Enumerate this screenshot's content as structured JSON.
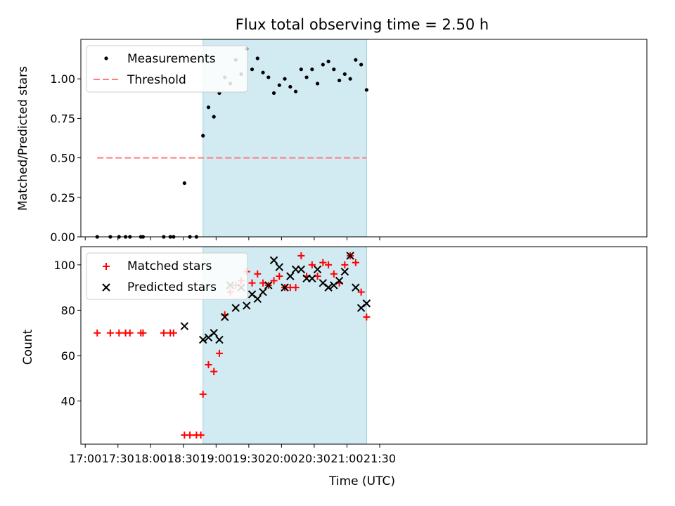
{
  "chart_data": [
    {
      "type": "scatter",
      "title": "Flux total observing time = 2.50 h",
      "xlabel": "",
      "ylabel": "Matched/Predicted stars",
      "xlim": [
        1016,
        1535
      ],
      "ylim": [
        0,
        1.25
      ],
      "yticks": [
        0,
        0.25,
        0.5,
        0.75,
        1.0
      ],
      "ytick_labels": [
        "0.00",
        "0.25",
        "0.50",
        "0.75",
        "1.00"
      ],
      "xticks": [
        1020,
        1050,
        1080,
        1110,
        1140,
        1170,
        1200,
        1230,
        1260,
        1290
      ],
      "shaded_region": [
        1128,
        1278
      ],
      "shade_color": "#add8e6",
      "legend": {
        "location": "upper-left",
        "measurements": "Measurements",
        "threshold": "Threshold"
      },
      "threshold": {
        "name": "Threshold",
        "value": 0.5,
        "x_range": [
          1031,
          1278
        ],
        "color": "#ff7f7f"
      },
      "series": [
        {
          "name": "Measurements",
          "color": "#000000",
          "x": [
            1031,
            1043,
            1051,
            1057,
            1061,
            1071,
            1073,
            1092,
            1098,
            1101,
            1122,
            1128,
            1133,
            1138,
            1143,
            1148,
            1153,
            1158,
            1163,
            1168,
            1173,
            1178,
            1183,
            1188,
            1193,
            1198,
            1203,
            1208,
            1213,
            1218,
            1223,
            1228,
            1233,
            1238,
            1243,
            1248,
            1253,
            1258,
            1263,
            1268,
            1273,
            1278
          ],
          "y": [
            0,
            0,
            0,
            0,
            0,
            0,
            0,
            0,
            0,
            0,
            0,
            0.64,
            0.82,
            0.76,
            0.91,
            1.01,
            0.97,
            1.12,
            1.03,
            1.19,
            1.06,
            1.13,
            1.04,
            1.01,
            0.91,
            0.96,
            1.0,
            0.95,
            0.92,
            1.06,
            1.01,
            1.06,
            0.97,
            1.09,
            1.11,
            1.06,
            0.99,
            1.03,
            1.0,
            1.12,
            1.09,
            0.93
          ],
          "extra_points": [
            {
              "x": 1111,
              "y": 0.34
            },
            {
              "x": 1116,
              "y": 0
            }
          ]
        }
      ]
    },
    {
      "type": "scatter",
      "title": "",
      "xlabel": "Time (UTC)",
      "ylabel": "Count",
      "xlim": [
        1016,
        1535
      ],
      "ylim": [
        21,
        108
      ],
      "yticks": [
        40,
        60,
        80,
        100
      ],
      "ytick_labels": [
        "40",
        "60",
        "80",
        "100"
      ],
      "xticks": [
        1020,
        1050,
        1080,
        1110,
        1140,
        1170,
        1200,
        1230,
        1260,
        1290
      ],
      "xtick_labels": [
        "17:00",
        "17:30",
        "18:00",
        "18:30",
        "19:00",
        "19:30",
        "20:00",
        "20:30",
        "21:00",
        "21:30"
      ],
      "shaded_region": [
        1128,
        1278
      ],
      "shade_color": "#add8e6",
      "legend": {
        "location": "upper-left",
        "matched": "Matched stars",
        "predicted": "Predicted stars"
      },
      "series": [
        {
          "name": "Matched stars",
          "marker": "plus",
          "color": "#ff0000",
          "x": [
            1031,
            1043,
            1051,
            1057,
            1061,
            1071,
            1073,
            1092,
            1098,
            1101,
            1111,
            1116,
            1122,
            1126,
            1128,
            1133,
            1138,
            1143,
            1148,
            1153,
            1158,
            1163,
            1168,
            1173,
            1178,
            1183,
            1188,
            1193,
            1198,
            1203,
            1208,
            1213,
            1218,
            1223,
            1228,
            1233,
            1238,
            1243,
            1248,
            1253,
            1258,
            1263,
            1268,
            1273,
            1278
          ],
          "y": [
            70,
            70,
            70,
            70,
            70,
            70,
            70,
            70,
            70,
            70,
            25,
            25,
            25,
            25,
            43,
            56,
            53,
            61,
            78,
            88,
            91,
            93,
            97,
            92,
            96,
            92,
            91,
            93,
            95,
            90,
            90,
            90,
            104,
            95,
            100,
            95,
            101,
            100,
            96,
            92,
            100,
            104,
            101,
            88,
            77
          ]
        },
        {
          "name": "Predicted stars",
          "marker": "x",
          "color": "#000000",
          "x": [
            1111,
            1128,
            1133,
            1138,
            1143,
            1148,
            1153,
            1158,
            1163,
            1168,
            1173,
            1178,
            1183,
            1188,
            1193,
            1198,
            1203,
            1208,
            1213,
            1218,
            1223,
            1228,
            1233,
            1238,
            1243,
            1248,
            1253,
            1258,
            1263,
            1268,
            1273,
            1278
          ],
          "y": [
            73,
            67,
            68,
            70,
            67,
            77,
            91,
            81,
            90,
            82,
            87,
            85,
            88,
            91,
            102,
            99,
            90,
            95,
            98,
            98,
            94,
            94,
            98,
            92,
            90,
            91,
            93,
            97,
            104,
            90,
            81,
            83
          ]
        }
      ]
    }
  ]
}
